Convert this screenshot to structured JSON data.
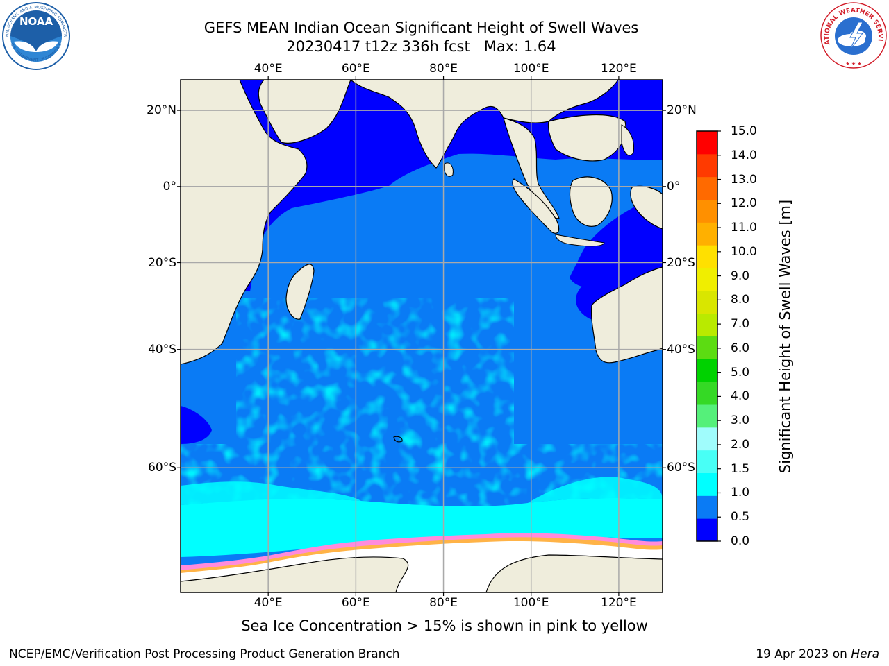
{
  "header": {
    "title_line1": "GEFS MEAN Indian Ocean Significant Height of Swell Waves",
    "title_line2": "20230417 t12z 336h fcst   Max: 1.64"
  },
  "logos": {
    "left": {
      "name": "NOAA",
      "ring_text": "NATIONAL OCEANIC AND ATMOSPHERIC ADMINISTRATION",
      "bottom_text": "U.S. DEPARTMENT OF COMMERCE",
      "color": "#1d5fa8"
    },
    "right": {
      "name": "NATIONAL WEATHER SERVICE",
      "color": "#d21f2b"
    }
  },
  "map": {
    "lon_labels": [
      "40°E",
      "60°E",
      "80°E",
      "100°E",
      "120°E"
    ],
    "lat_labels": [
      "20°N",
      "0°",
      "20°S",
      "40°S",
      "60°S"
    ],
    "lon_range": [
      20,
      130
    ],
    "lat_range": [
      -73,
      27.5
    ],
    "land_color": "#efeddc",
    "grid_color": "#a9a9a9"
  },
  "colorbar": {
    "label": "Significant Height of Swell Waves [m]",
    "tick_labels": [
      "15.0",
      "14.0",
      "13.0",
      "12.0",
      "11.0",
      "10.0",
      "9.0",
      "8.0",
      "7.0",
      "6.0",
      "5.0",
      "4.0",
      "3.0",
      "2.0",
      "1.5",
      "1.0",
      "0.5",
      "0.0"
    ],
    "colors_bottom_to_top": [
      "#0000ff",
      "#0a7bf5",
      "#00ffff",
      "#48fff6",
      "#a0fcfc",
      "#55f07a",
      "#35d925",
      "#00d200",
      "#5cdc12",
      "#b9ea00",
      "#d9e600",
      "#f0ee00",
      "#ffe000",
      "#ffb000",
      "#ff9000",
      "#ff6a00",
      "#ff3a00",
      "#ff0000"
    ]
  },
  "caption": "Sea Ice Concentration > 15% is shown in pink to yellow",
  "footer": {
    "left": "NCEP/EMC/Verification Post Processing Product Generation Branch",
    "date": "19 Apr 2023 on ",
    "machine": "Hera"
  }
}
